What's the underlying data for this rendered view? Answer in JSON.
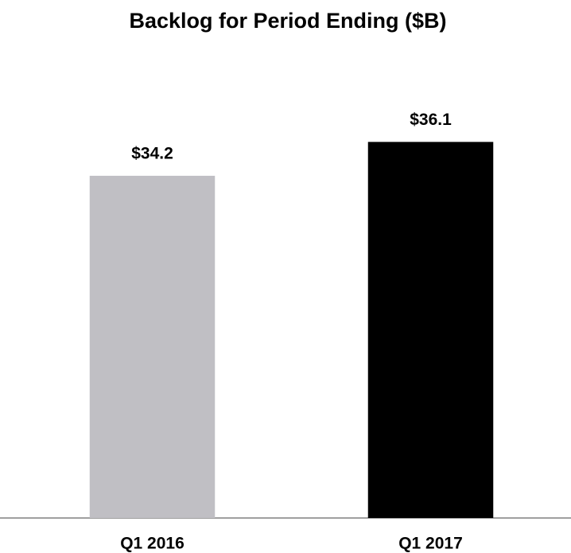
{
  "chart_data": {
    "type": "bar",
    "title": "Backlog for Period Ending ($B)",
    "categories": [
      "Q1 2016",
      "Q1 2017"
    ],
    "values": [
      34.2,
      36.1
    ],
    "value_labels": [
      "$34.2",
      "$36.1"
    ],
    "colors": [
      "#c0bfc4",
      "#000000"
    ],
    "ylim": [
      15,
      40
    ]
  }
}
